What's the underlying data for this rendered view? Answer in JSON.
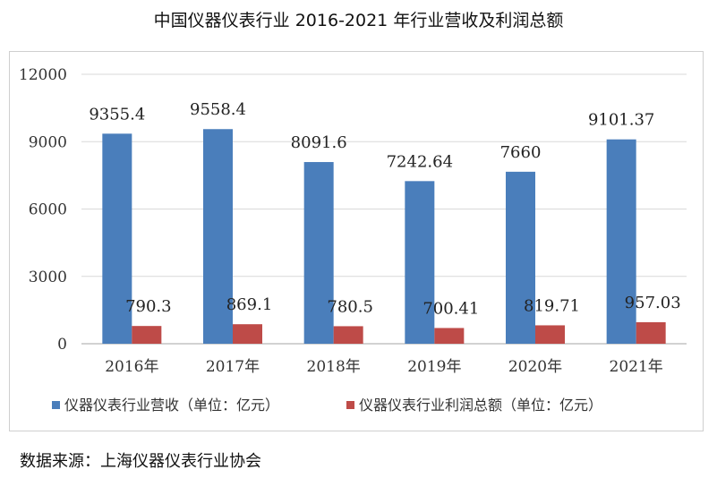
{
  "title": "中国仪器仪表行业 2016-2021 年行业营收及利润总额",
  "source": "数据来源：上海仪器仪表行业协会",
  "chart_data": {
    "type": "bar",
    "categories": [
      "2016年",
      "2017年",
      "2018年",
      "2019年",
      "2020年",
      "2021年"
    ],
    "series": [
      {
        "name": "仪器仪表行业营收（单位：亿元）",
        "values": [
          9355.4,
          9558.4,
          8091.6,
          7242.64,
          7660,
          9101.37
        ],
        "labels": [
          "9355.4",
          "9558.4",
          "8091.6",
          "7242.64",
          "7660",
          "9101.37"
        ],
        "color": "#4a7ebb"
      },
      {
        "name": "仪器仪表行业利润总额（单位：亿元）",
        "values": [
          790.3,
          869.1,
          780.5,
          700.41,
          819.71,
          957.03
        ],
        "labels": [
          "790.3",
          "869.1",
          "780.5",
          "700.41",
          "819.71",
          "957.03"
        ],
        "color": "#be4b48"
      }
    ],
    "yticks": [
      "0",
      "3000",
      "6000",
      "9000",
      "12000"
    ],
    "ylim": [
      0,
      12000
    ],
    "grid": true,
    "legend": "bottom"
  }
}
